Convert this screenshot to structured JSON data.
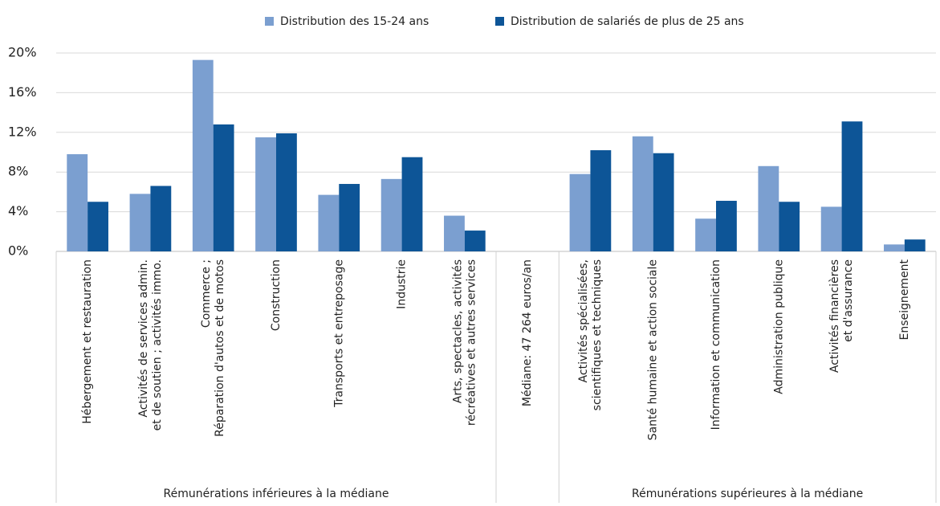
{
  "chart_data": {
    "type": "bar",
    "categories": [
      "Hébergement et restauration",
      "Activités de services admin.\net de soutien ; activités immo.",
      "Commerce ;\nRéparation d'autos et de motos",
      "Construction",
      "Transports et entreposage",
      "Industrie",
      "Arts, spectacles, activités\nrécréatives et autres services",
      "Médiane: 47 264 euros/an",
      "Activités spécialisées,\nscientifiques et techniques",
      "Santé humaine et action sociale",
      "Information et communication",
      "Administration publique",
      "Activités financières\net d'assurance",
      "Enseignement"
    ],
    "series": [
      {
        "name": "Distribution des 15-24 ans",
        "color": "#7b9fd0",
        "values": [
          9.8,
          5.8,
          19.3,
          11.5,
          5.7,
          7.3,
          3.6,
          null,
          7.8,
          11.6,
          3.3,
          8.6,
          4.5,
          0.7
        ]
      },
      {
        "name": "Distribution de salariés de plus de 25 ans",
        "color": "#0d5597",
        "values": [
          5.0,
          6.6,
          12.8,
          11.9,
          6.8,
          9.5,
          2.1,
          null,
          10.2,
          9.9,
          5.1,
          5.0,
          13.1,
          1.2
        ]
      }
    ],
    "groups": [
      "Rémunérations inférieures à la médiane",
      "Rémunérations supérieures à la médiane"
    ],
    "ylim": [
      0,
      20
    ],
    "yticks": [
      {
        "value": 0,
        "label": "0%"
      },
      {
        "value": 4,
        "label": "4%"
      },
      {
        "value": 8,
        "label": "8%"
      },
      {
        "value": 12,
        "label": "12%"
      },
      {
        "value": 16,
        "label": "16%"
      },
      {
        "value": 20,
        "label": "20%"
      }
    ],
    "grid": true
  }
}
